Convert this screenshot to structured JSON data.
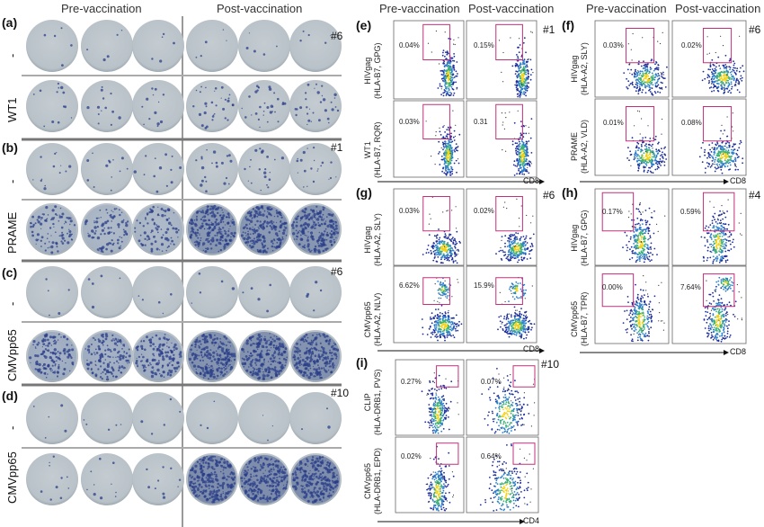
{
  "left": {
    "headers": {
      "pre": "Pre-vaccination",
      "post": "Post-vaccination"
    },
    "panels": [
      {
        "letter": "(a)",
        "patient": "#6",
        "rows": [
          {
            "label": "-",
            "density": 0.02,
            "post_density": 0.02
          },
          {
            "label": "WT1",
            "density": 0.05,
            "post_density": 0.12
          }
        ]
      },
      {
        "letter": "(b)",
        "patient": "#1",
        "rows": [
          {
            "label": "-",
            "density": 0.05,
            "post_density": 0.08
          },
          {
            "label": "PRAME",
            "density": 0.35,
            "post_density": 0.85
          }
        ]
      },
      {
        "letter": "(c)",
        "patient": "#6",
        "rows": [
          {
            "label": "-",
            "density": 0.02,
            "post_density": 0.02
          },
          {
            "label": "CMVpp65",
            "density": 0.55,
            "post_density": 0.9
          }
        ]
      },
      {
        "letter": "(d)",
        "patient": "#10",
        "rows": [
          {
            "label": "-",
            "density": 0.02,
            "post_density": 0.01
          },
          {
            "label": "CMVpp65",
            "density": 0.04,
            "post_density": 0.95
          }
        ]
      }
    ]
  },
  "flow": {
    "headers": {
      "pre": "Pre-vaccination",
      "post": "Post-vaccination"
    },
    "e": {
      "letter": "(e)",
      "patient": "#1",
      "x_axis": "CD8",
      "rows": [
        {
          "ylab1": "HIVgag",
          "ylab2": "(HLA-B7, GPG)",
          "pre": "0.04%",
          "post": "0.15%"
        },
        {
          "ylab1": "WT1",
          "ylab2": "(HLA-B7, RQR)",
          "pre": "0.03%",
          "post": "0.31"
        }
      ]
    },
    "f": {
      "letter": "(f)",
      "patient": "#6",
      "x_axis": "CD8",
      "rows": [
        {
          "ylab1": "HIVgag",
          "ylab2": "(HLA-A2, SLY)",
          "pre": "0.03%",
          "post": "0.02%"
        },
        {
          "ylab1": "PRAME",
          "ylab2": "(HLA-A2, VLD)",
          "pre": "0.01%",
          "post": "0.08%"
        }
      ]
    },
    "g": {
      "letter": "(g)",
      "patient": "#6",
      "x_axis": "CD8",
      "rows": [
        {
          "ylab1": "HIVgag",
          "ylab2": "(HLA-A2, SLY)",
          "pre": "0.03%",
          "post": "0.02%"
        },
        {
          "ylab1": "CMVpp65",
          "ylab2": "(HLA-A2, NLV)",
          "pre": "6.62%",
          "post": "15.9%"
        }
      ]
    },
    "h": {
      "letter": "(h)",
      "patient": "#4",
      "x_axis": "CD8",
      "rows": [
        {
          "ylab1": "HIVgag",
          "ylab2": "(HLA-B7, GPG)",
          "pre": "0.17%",
          "post": "0.59%"
        },
        {
          "ylab1": "CMVpp65",
          "ylab2": "(HLA-B7, TPR)",
          "pre": "0.00%",
          "post": "7.64%"
        }
      ]
    },
    "i": {
      "letter": "(i)",
      "patient": "#10",
      "x_axis": "CD4",
      "rows": [
        {
          "ylab1": "CLIP",
          "ylab2": "(HLA-DRB1, PVS)",
          "pre": "0.27%",
          "post": "0.07%"
        },
        {
          "ylab1": "CMVpp65",
          "ylab2": "(HLA-DRB1, EPD)",
          "pre": "0.02%",
          "post": "0.64%"
        }
      ]
    }
  },
  "colors": {
    "well": "#b9c2c8",
    "well_dark": "#4a5f92",
    "spot": "#2a3e88",
    "gate": "#c2307a",
    "axis": "#111111"
  }
}
